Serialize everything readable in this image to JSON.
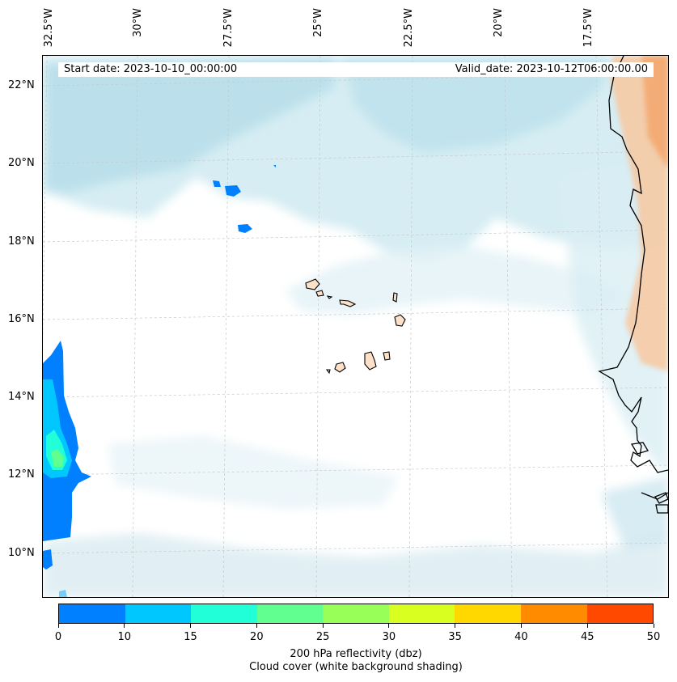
{
  "map": {
    "title_start": "Start date: 2023-10-10_00:00:00",
    "title_valid": "Valid_date: 2023-10-12T06:00:00.00",
    "lon_labels": [
      "32.5°W",
      "30°W",
      "27.5°W",
      "25°W",
      "22.5°W",
      "20°W",
      "17.5°W"
    ],
    "lat_labels": [
      "22°N",
      "20°N",
      "18°N",
      "16°N",
      "14°N",
      "12°N",
      "10°N"
    ]
  },
  "colorbar": {
    "label": "200 hPa reflectivity (dbz)",
    "sublabel": "Cloud cover (white background shading)",
    "ticks": [
      "0",
      "10",
      "15",
      "20",
      "25",
      "30",
      "35",
      "40",
      "45",
      "50"
    ],
    "colors": [
      "#0080ff",
      "#00c8ff",
      "#20ffd8",
      "#60ff90",
      "#98ff58",
      "#d8ff20",
      "#ffd800",
      "#ff8c00",
      "#ff4800"
    ]
  },
  "colors": {
    "cloud_light": "#d6edf3",
    "cloud_mid": "#add8e6",
    "land_sahara": "#f7c8a0",
    "refl_base": "#0080ff",
    "coast": "#000000"
  }
}
